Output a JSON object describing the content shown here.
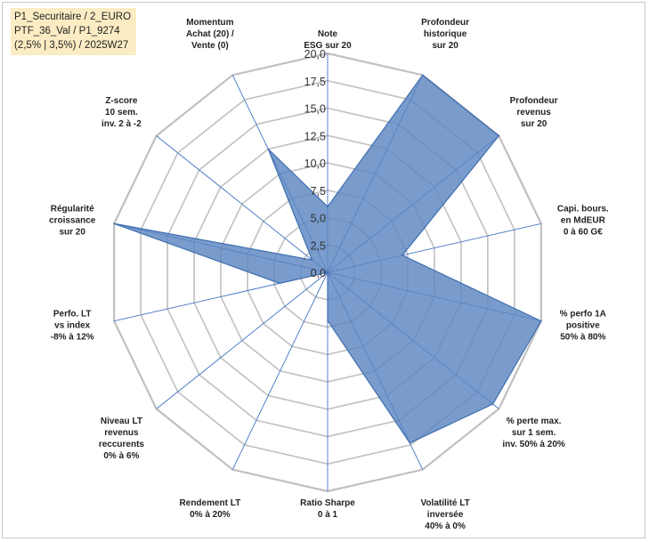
{
  "info": {
    "line1": "P1_Securitaire / 2_EURO",
    "line2": "PTF_36_Val / P1_9274",
    "line3": "(2,5% | 3,5%) / 2025W27"
  },
  "chart_data": {
    "type": "radar",
    "rmin": 0,
    "rmax": 20,
    "tick_step": 2.5,
    "tick_labels": [
      "0,0",
      "2,5",
      "5,0",
      "7,5",
      "10,0",
      "12,5",
      "15,0",
      "17,5",
      "20,0"
    ],
    "axes": [
      [
        "Note",
        "ESG sur 20"
      ],
      [
        "Profondeur",
        "historique",
        "sur 20"
      ],
      [
        "Profondeur",
        "revenus",
        "sur 20"
      ],
      [
        "Capi. bours.",
        "en MdEUR",
        "0 à 60 G€"
      ],
      [
        "% perfo 1A",
        "positive",
        "50% à 80%"
      ],
      [
        "% perte max.",
        "sur 1 sem.",
        "inv. 50% à 20%"
      ],
      [
        "Volatilité LT",
        "inversée",
        "40% à 0%"
      ],
      [
        "Ratio Sharpe",
        "0 à 1"
      ],
      [
        "Rendement LT",
        "0% à 20%"
      ],
      [
        "Niveau LT",
        "revenus",
        "reccurents",
        "0% à 6%"
      ],
      [
        "Perfo. LT",
        "vs index",
        "-8% à 12%"
      ],
      [
        "Régularité",
        "croissance",
        "sur 20"
      ],
      [
        "Z-score",
        "10 sem.",
        "inv. 2 à -2"
      ],
      [
        "Momentum",
        "Achat (20) /",
        "Vente (0)"
      ]
    ],
    "values": [
      6,
      20,
      20,
      7,
      20,
      19.3,
      17.3,
      4.4,
      0,
      0,
      4.5,
      20,
      1.8,
      12.5
    ],
    "colors": {
      "fill": "#5b86c1",
      "fill_opacity": 0.82,
      "stroke": "#3f6fb0",
      "grid": "#c0c0c0",
      "spokes": "#4a7ac8"
    }
  }
}
